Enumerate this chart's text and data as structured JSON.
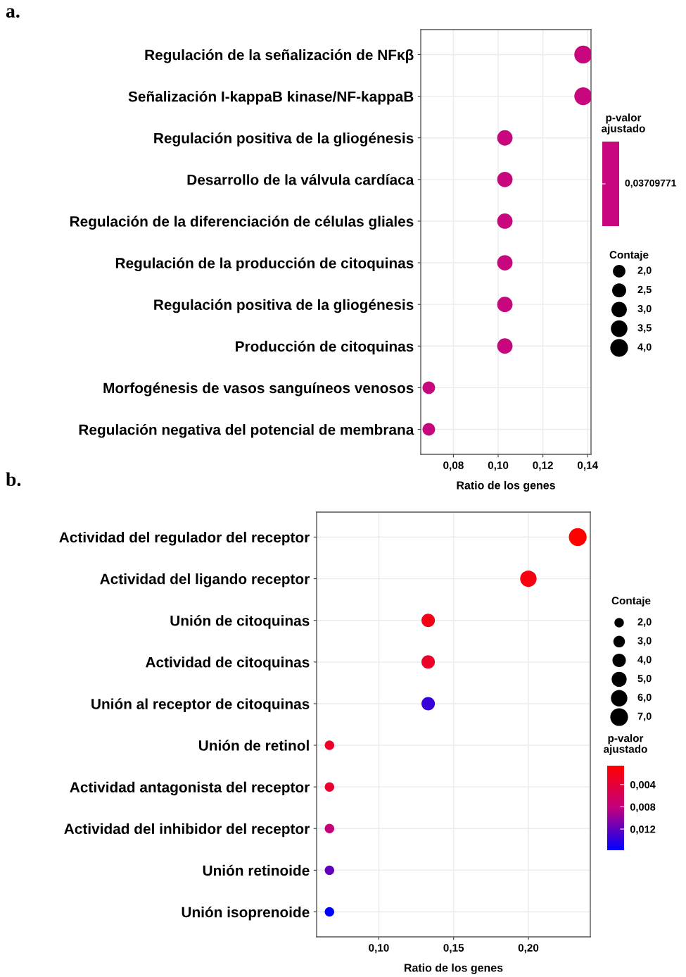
{
  "chart_data": [
    {
      "type": "bubble",
      "title": "a.",
      "orientation": "horizontal",
      "xlabel": "Ratio de los genes",
      "legend_title": "Contaje",
      "clabel": "p-valor\najustado",
      "grid": true,
      "annotations": [
        "0,03709771"
      ],
      "categories": [
        "Regulación de la señalización de NFκβ",
        "Señalización I-kappaB kinase/NF-kappaB",
        "Regulación positiva de la gliogénesis",
        "Desarrollo de la válvula cardíaca",
        "Regulación de la diferenciación de células gliales",
        "Regulación de la producción de citoquinas",
        "Regulación positiva de la gliogénesis",
        "Producción de citoquinas",
        "Morfogénesis de vasos sanguíneos venosos",
        "Regulación negativa del potencial de membrana"
      ],
      "xlim": [
        0.0654,
        0.1415
      ],
      "xticks": [
        {
          "value": 0.08,
          "label": "0,08"
        },
        {
          "value": 0.1,
          "label": "0,10"
        },
        {
          "value": 0.12,
          "label": "0,12"
        },
        {
          "value": 0.14,
          "label": "0,14"
        }
      ],
      "size_legend": [
        {
          "value": 2,
          "label": "2,0"
        },
        {
          "value": 2.5,
          "label": "2,5"
        },
        {
          "value": 3,
          "label": "3,0"
        },
        {
          "value": 3.5,
          "label": "3,5"
        },
        {
          "value": 4,
          "label": "4,0"
        }
      ],
      "series": [
        {
          "color": "#c8077f",
          "values": [
            0.138,
            0.138,
            0.103,
            0.103,
            0.103,
            0.103,
            0.103,
            0.103,
            0.069,
            0.069
          ],
          "sizes": [
            4,
            4,
            3,
            3,
            3,
            3,
            3,
            3,
            2,
            2
          ]
        }
      ]
    },
    {
      "type": "bubble",
      "title": "b.",
      "orientation": "horizontal",
      "xlabel": "Ratio de los genes",
      "legend_title": "Contaje",
      "clabel": "p-valor\najustado",
      "grid": true,
      "categories": [
        "Actividad del regulador del receptor",
        "Actividad del ligando receptor",
        "Unión de citoquinas",
        "Actividad de citoquinas",
        "Unión al receptor de citoquinas",
        "Unión de retinol",
        "Actividad antagonista del receptor",
        "Actividad del inhibidor del receptor",
        "Unión retinoide",
        "Unión isoprenoide"
      ],
      "xlim": [
        0.0584,
        0.2414
      ],
      "xticks": [
        {
          "value": 0.1,
          "label": "0,10"
        },
        {
          "value": 0.15,
          "label": "0,15"
        },
        {
          "value": 0.2,
          "label": "0,20"
        }
      ],
      "clim": [
        0.0006,
        0.0158
      ],
      "cticks": [
        {
          "value": 0.004,
          "label": "0,004"
        },
        {
          "value": 0.008,
          "label": "0,008"
        },
        {
          "value": 0.012,
          "label": "0,012"
        }
      ],
      "size_legend": [
        {
          "value": 2,
          "label": "2,0"
        },
        {
          "value": 3,
          "label": "3,0"
        },
        {
          "value": 4,
          "label": "4,0"
        },
        {
          "value": 5,
          "label": "5,0"
        },
        {
          "value": 6,
          "label": "6,0"
        },
        {
          "value": 7,
          "label": "7,0"
        }
      ],
      "series": [
        {
          "values": [
            0.233,
            0.2,
            0.133,
            0.133,
            0.133,
            0.067,
            0.067,
            0.067,
            0.067,
            0.067
          ],
          "sizes": [
            7,
            6,
            4,
            4,
            4,
            2,
            2,
            2,
            2,
            2
          ],
          "cvalues": [
            0.0006,
            0.0015,
            0.002,
            0.003,
            0.0135,
            0.003,
            0.0035,
            0.008,
            0.012,
            0.0158
          ]
        }
      ]
    }
  ]
}
